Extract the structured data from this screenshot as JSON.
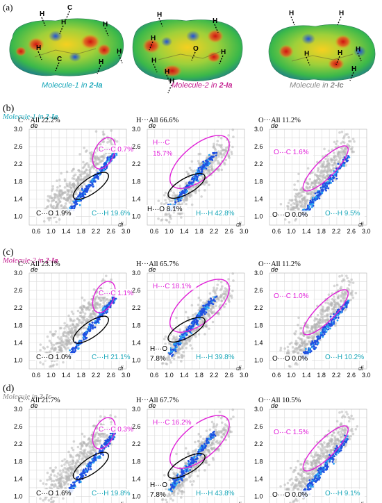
{
  "panel_a": {
    "label": "(a)",
    "molecules": [
      {
        "caption_name": "Molecule-1",
        "caption_in": " in ",
        "caption_compound": "2-Ia",
        "name_color": "#16a6b8",
        "compound_color": "#16a6b8",
        "atoms": [
          "H",
          "C",
          "H",
          "H",
          "H",
          "C",
          "H",
          "H"
        ]
      },
      {
        "caption_name": "Molecule-2",
        "caption_in": " in ",
        "caption_compound": "2-Ia",
        "name_color": "#c2188c",
        "compound_color": "#c2188c",
        "atoms": [
          "H",
          "H",
          "H",
          "O",
          "H",
          "H",
          "H",
          "H"
        ]
      },
      {
        "caption_name": "Molecule",
        "caption_in": " in ",
        "caption_compound": "2-Ic",
        "name_color": "#888888",
        "compound_color": "#888888",
        "atoms": [
          "H",
          "H",
          "H",
          "H",
          "H",
          "H"
        ]
      }
    ]
  },
  "rows": [
    {
      "label": "(b)",
      "title_name": "Molecule-1",
      "title_in": " in ",
      "title_compound": "2-Ia",
      "title_color": "#16a6b8",
      "panels": [
        {
          "header": "C···All 22.2%",
          "contacts": [
            {
              "text": "C···C 0.7%",
              "color": "#e020d8"
            },
            {
              "text": "C···O 1.9%",
              "color": "#000000"
            },
            {
              "text": "C···H 19.6%",
              "color": "#16a6b8"
            }
          ]
        },
        {
          "header": "H···All 66.6%",
          "contacts": [
            {
              "text": "H···C",
              "color": "#e020d8"
            },
            {
              "text": "15.7%",
              "color": "#e020d8"
            },
            {
              "text": "H···O 8.1%",
              "color": "#000000"
            },
            {
              "text": "H···H 42.8%",
              "color": "#16a6b8"
            }
          ]
        },
        {
          "header": "O···All 11.2%",
          "contacts": [
            {
              "text": "O···C 1.6%",
              "color": "#e020d8"
            },
            {
              "text": "O···O 0.0%",
              "color": "#000000"
            },
            {
              "text": "O···H 9.5%",
              "color": "#16a6b8"
            }
          ]
        }
      ]
    },
    {
      "label": "(c)",
      "title_name": "Molecule-2",
      "title_in": " in ",
      "title_compound": "2-Ia",
      "title_color": "#c2188c",
      "panels": [
        {
          "header": "C···All 23.1%",
          "contacts": [
            {
              "text": "C···C 1.1%",
              "color": "#e020d8"
            },
            {
              "text": "C···O 1.0%",
              "color": "#000000"
            },
            {
              "text": "C···H 21.1%",
              "color": "#16a6b8"
            }
          ]
        },
        {
          "header": "H···All 65.7%",
          "contacts": [
            {
              "text": "H···C 18.1%",
              "color": "#e020d8"
            },
            {
              "text": "H···O",
              "color": "#000000"
            },
            {
              "text": "7.8%",
              "color": "#000000"
            },
            {
              "text": "H···H 39.8%",
              "color": "#16a6b8"
            }
          ]
        },
        {
          "header": "O···All 11.2%",
          "contacts": [
            {
              "text": "O···C 1.0%",
              "color": "#e020d8"
            },
            {
              "text": "O···O 0.0%",
              "color": "#000000"
            },
            {
              "text": "O···H 10.2%",
              "color": "#16a6b8"
            }
          ]
        }
      ]
    },
    {
      "label": "(d)",
      "title_name": "Molecule",
      "title_in": " in ",
      "title_compound": "2-Ic",
      "title_color": "#888888",
      "panels": [
        {
          "header": "C···All 21.7%",
          "contacts": [
            {
              "text": "C···C 0.3%",
              "color": "#e020d8"
            },
            {
              "text": "C···O 1.6%",
              "color": "#000000"
            },
            {
              "text": "C···H 19.8%",
              "color": "#16a6b8"
            }
          ]
        },
        {
          "header": "H···All 67.7%",
          "contacts": [
            {
              "text": "H···C 16.2%",
              "color": "#e020d8"
            },
            {
              "text": "H···O",
              "color": "#000000"
            },
            {
              "text": "7.8%",
              "color": "#000000"
            },
            {
              "text": "H···H 43.8%",
              "color": "#16a6b8"
            }
          ]
        },
        {
          "header": "O···All 10.5%",
          "contacts": [
            {
              "text": "O···C 1.5%",
              "color": "#e020d8"
            },
            {
              "text": "O···O 0.0%",
              "color": "#000000"
            },
            {
              "text": "O···H 9.1%",
              "color": "#16a6b8"
            }
          ]
        }
      ]
    }
  ],
  "chart_data": {
    "type": "scatter",
    "xlabel": "di",
    "ylabel": "de",
    "xlim": [
      0.4,
      3.0
    ],
    "ylim": [
      0.8,
      3.0
    ],
    "xticks": [
      "0.6",
      "1.0",
      "1.4",
      "1.8",
      "2.2",
      "2.6",
      "3.0"
    ],
    "yticks": [
      "1.0",
      "1.4",
      "1.8",
      "2.2",
      "2.6",
      "3.0"
    ],
    "grid": true,
    "colors": {
      "fingerprint_all": "#b4b4b4",
      "highlight": "#1f4fe0",
      "highlight_dense": "#2aa0f0",
      "ellipse_cc": "#e020d8",
      "ellipse_co": "#000000"
    }
  }
}
